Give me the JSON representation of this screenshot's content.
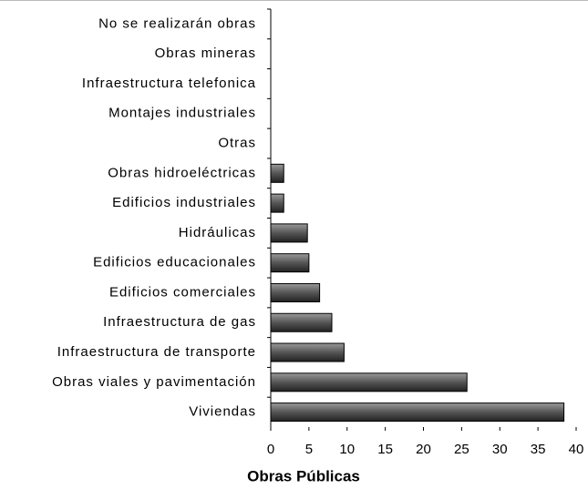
{
  "chart_data": {
    "type": "hbar",
    "categories": [
      "No se realizarán obras",
      "Obras mineras",
      "Infraestructura telefonica",
      "Montajes industriales",
      "Otras",
      "Obras hidroeléctricas",
      "Edificios industriales",
      "Hidráulicas",
      "Edificios educacionales",
      "Edificios comerciales",
      "Infraestructura de gas",
      "Infraestructura de transporte",
      "Obras viales y pavimentación",
      "Viviendas"
    ],
    "values": [
      0,
      0,
      0,
      0,
      0,
      1.7,
      1.7,
      4.8,
      5.0,
      6.4,
      8.0,
      9.6,
      25.7,
      38.4
    ],
    "color": "#555555",
    "xlabel": "Obras Públicas",
    "xlim": [
      0,
      40
    ],
    "xticks": [
      0,
      5,
      10,
      15,
      20,
      25,
      30,
      35,
      40
    ]
  }
}
